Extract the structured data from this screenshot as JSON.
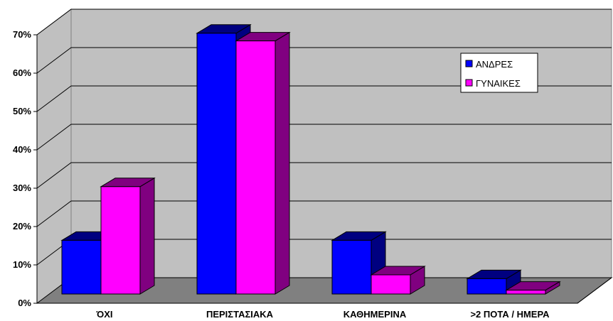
{
  "chart_data": {
    "type": "bar",
    "categories": [
      "ΌΧΙ",
      "ΠΕΡΙΣΤΑΣΙΑΚΑ",
      "ΚΑΘΗΜΕΡΙΝΑ",
      ">2 ΠΟΤΑ / ΗΜΕΡΑ"
    ],
    "series": [
      {
        "name": "ΑΝΔΡΕΣ",
        "values": [
          14,
          68,
          14,
          4
        ],
        "color": "#0000ff",
        "side_color": "#000080"
      },
      {
        "name": "ΓΥΝΑΙΚΕΣ",
        "values": [
          28,
          66,
          5,
          1
        ],
        "color": "#ff00ff",
        "side_color": "#800080"
      }
    ],
    "yticks": [
      "0%",
      "10%",
      "20%",
      "30%",
      "40%",
      "50%",
      "60%",
      "70%"
    ],
    "ylim": [
      0,
      70
    ],
    "grid": true,
    "style": "3d-clustered-column",
    "legend_position": "right",
    "wall_color": "#c0c0c0",
    "floor_color": "#808080"
  }
}
